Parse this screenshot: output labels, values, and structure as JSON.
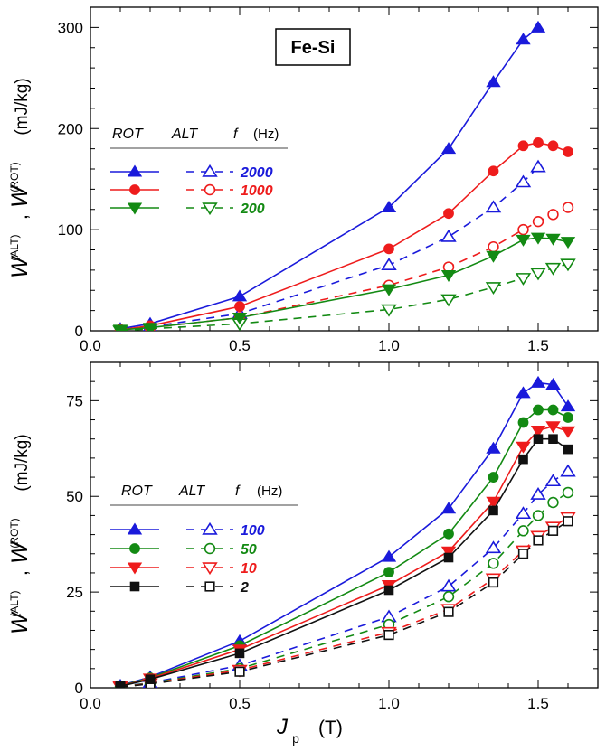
{
  "chart_data": [
    {
      "type": "line",
      "material_label": "Fe-Si",
      "xlim": [
        0.0,
        1.7
      ],
      "ylim": [
        0,
        320
      ],
      "x_ticks": [
        0.0,
        0.5,
        1.0,
        1.5
      ],
      "x_tick_labels": [
        "0.0",
        "0.5",
        "1.0",
        "1.5"
      ],
      "y_ticks": [
        0,
        100,
        200,
        300
      ],
      "y_tick_labels": [
        "0",
        "100",
        "200",
        "300"
      ],
      "ylabel": {
        "w": "W",
        "alt": "(ALT)",
        "sep": ",",
        "rot": "(ROT)",
        "unit": "(mJ/kg)"
      },
      "legend_headers": {
        "rot": "ROT",
        "alt": "ALT",
        "f": "f",
        "unit": "(Hz)"
      },
      "legend_placement": "upper-left",
      "grid": false,
      "series": [
        {
          "label": "2000",
          "color": "#1a1adb",
          "marker": "triangle-up",
          "rot": {
            "x": [
              0.1,
              0.2,
              0.5,
              1.0,
              1.2,
              1.35,
              1.45,
              1.5
            ],
            "y": [
              2,
              7,
              34,
              122,
              180,
              246,
              288,
              300
            ]
          },
          "alt": {
            "x": [
              0.1,
              0.2,
              0.5,
              1.0,
              1.2,
              1.35,
              1.45,
              1.5
            ],
            "y": [
              1,
              4,
              17,
              65,
              93,
              122,
              147,
              162
            ]
          }
        },
        {
          "label": "1000",
          "color": "#ee1c1c",
          "marker": "circle",
          "rot": {
            "x": [
              0.1,
              0.2,
              0.5,
              1.0,
              1.2,
              1.35,
              1.45,
              1.5,
              1.55,
              1.6
            ],
            "y": [
              1,
              5,
              24,
              81,
              116,
              158,
              183,
              186,
              183,
              177
            ]
          },
          "alt": {
            "x": [
              0.1,
              0.2,
              0.5,
              1.0,
              1.2,
              1.35,
              1.45,
              1.5,
              1.55,
              1.6
            ],
            "y": [
              1,
              3,
              13,
              45,
              63,
              83,
              100,
              108,
              115,
              122
            ]
          }
        },
        {
          "label": "200",
          "color": "#138a13",
          "marker": "triangle-down",
          "rot": {
            "x": [
              0.1,
              0.2,
              0.5,
              1.0,
              1.2,
              1.35,
              1.45,
              1.5,
              1.55,
              1.6
            ],
            "y": [
              1,
              3,
              13,
              41,
              55,
              74,
              90,
              92,
              91,
              88
            ]
          },
          "alt": {
            "x": [
              0.1,
              0.2,
              0.5,
              1.0,
              1.2,
              1.35,
              1.45,
              1.5,
              1.55,
              1.6
            ],
            "y": [
              0,
              2,
              7,
              21,
              31,
              43,
              52,
              57,
              62,
              66
            ]
          }
        }
      ]
    },
    {
      "type": "line",
      "xlim": [
        0.0,
        1.7
      ],
      "ylim": [
        0,
        85
      ],
      "x_ticks": [
        0.0,
        0.5,
        1.0,
        1.5
      ],
      "x_tick_labels": [
        "0.0",
        "0.5",
        "1.0",
        "1.5"
      ],
      "y_ticks": [
        0,
        25,
        50,
        75
      ],
      "y_tick_labels": [
        "0",
        "25",
        "50",
        "75"
      ],
      "xlabel": {
        "j": "J",
        "sub": "p",
        "unit": "(T)"
      },
      "ylabel": {
        "w": "W",
        "alt": "(ALT)",
        "sep": ",",
        "rot": "(ROT)",
        "unit": "(mJ/kg)"
      },
      "legend_headers": {
        "rot": "ROT",
        "alt": "ALT",
        "f": "f",
        "unit": "(Hz)"
      },
      "legend_placement": "left",
      "grid": false,
      "series": [
        {
          "label": "100",
          "color": "#1a1adb",
          "marker": "triangle-up",
          "rot": {
            "x": [
              0.1,
              0.2,
              0.5,
              1.0,
              1.2,
              1.35,
              1.45,
              1.5,
              1.55,
              1.6
            ],
            "y": [
              0.6,
              2.8,
              12.2,
              34.2,
              46.8,
              62.5,
              77,
              79.7,
              79.2,
              73.5
            ]
          },
          "alt": {
            "x": [
              0.1,
              0.2,
              0.5,
              1.0,
              1.2,
              1.35,
              1.45,
              1.5,
              1.55,
              1.6
            ],
            "y": [
              0.3,
              1.3,
              5.8,
              18.5,
              26.5,
              36.5,
              45.5,
              50.5,
              54,
              56.5
            ]
          }
        },
        {
          "label": "50",
          "color": "#138a13",
          "marker": "circle",
          "rot": {
            "x": [
              0.1,
              0.2,
              0.5,
              1.0,
              1.2,
              1.35,
              1.45,
              1.5,
              1.55,
              1.6
            ],
            "y": [
              0.5,
              2.6,
              11,
              30.2,
              40.2,
              55,
              69.3,
              72.6,
              72.6,
              70.6
            ]
          },
          "alt": {
            "x": [
              0.1,
              0.2,
              0.5,
              1.0,
              1.2,
              1.35,
              1.45,
              1.5,
              1.55,
              1.6
            ],
            "y": [
              0.3,
              1.2,
              5,
              16.5,
              23.8,
              32.5,
              41,
              45,
              48.4,
              51
            ]
          },
          "label_style": "green"
        },
        {
          "label": "10",
          "color": "#ee1c1c",
          "marker": "triangle-down",
          "rot": {
            "x": [
              0.1,
              0.2,
              0.5,
              1.0,
              1.2,
              1.35,
              1.45,
              1.5,
              1.55,
              1.6
            ],
            "y": [
              0.4,
              2.4,
              10,
              26.8,
              35.6,
              48.6,
              63,
              67.2,
              68.3,
              67
            ]
          },
          "alt": {
            "x": [
              0.1,
              0.2,
              0.5,
              1.0,
              1.2,
              1.35,
              1.45,
              1.5,
              1.55,
              1.6
            ],
            "y": [
              0.2,
              1.1,
              4.6,
              14.5,
              20.5,
              28.5,
              35.8,
              39.6,
              42,
              44.5
            ]
          }
        },
        {
          "label": "2",
          "color": "#111111",
          "marker": "square",
          "rot": {
            "x": [
              0.1,
              0.2,
              0.5,
              1.0,
              1.2,
              1.35,
              1.45,
              1.5,
              1.55,
              1.6
            ],
            "y": [
              0.4,
              2.2,
              9,
              25.5,
              34,
              46.3,
              59.7,
              65,
              65,
              62.3
            ]
          },
          "alt": {
            "x": [
              0.1,
              0.2,
              0.5,
              1.0,
              1.2,
              1.35,
              1.45,
              1.5,
              1.55,
              1.6
            ],
            "y": [
              0.2,
              1,
              4.2,
              13.8,
              19.8,
              27.5,
              35,
              38.5,
              41,
              43.5
            ]
          }
        }
      ]
    }
  ]
}
